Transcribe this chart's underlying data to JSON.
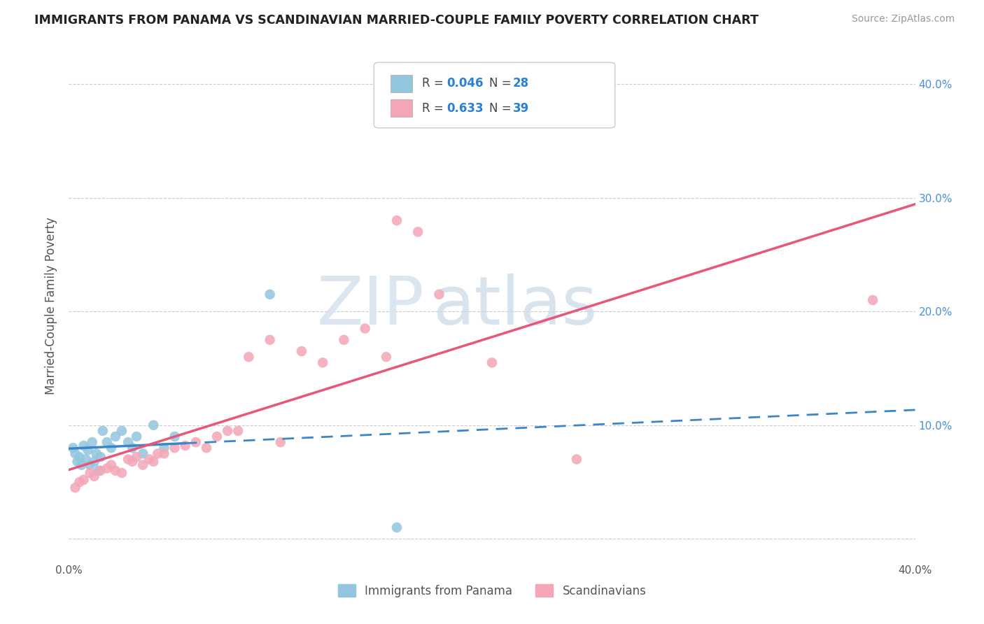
{
  "title": "IMMIGRANTS FROM PANAMA VS SCANDINAVIAN MARRIED-COUPLE FAMILY POVERTY CORRELATION CHART",
  "source": "Source: ZipAtlas.com",
  "ylabel": "Married-Couple Family Poverty",
  "xlim": [
    0.0,
    0.4
  ],
  "ylim": [
    -0.02,
    0.43
  ],
  "yticks": [
    0.0,
    0.1,
    0.2,
    0.3,
    0.4
  ],
  "left_ytick_labels": [
    "",
    "",
    "",
    "",
    ""
  ],
  "right_ytick_labels": [
    "",
    "10.0%",
    "20.0%",
    "30.0%",
    "40.0%"
  ],
  "legend_r1": "0.046",
  "legend_n1": "28",
  "legend_r2": "0.633",
  "legend_n2": "39",
  "legend_label1": "Immigrants from Panama",
  "legend_label2": "Scandinavians",
  "watermark_zip": "ZIP",
  "watermark_atlas": "atlas",
  "blue_color": "#92c5de",
  "pink_color": "#f4a6b8",
  "blue_line_color": "#3a86c8",
  "pink_line_color": "#e8567a",
  "background_color": "#ffffff",
  "grid_color": "#cccccc",
  "panama_x": [
    0.002,
    0.003,
    0.004,
    0.005,
    0.006,
    0.007,
    0.008,
    0.009,
    0.01,
    0.011,
    0.012,
    0.013,
    0.014,
    0.015,
    0.016,
    0.018,
    0.02,
    0.022,
    0.025,
    0.028,
    0.03,
    0.032,
    0.035,
    0.04,
    0.045,
    0.05,
    0.095,
    0.155
  ],
  "panama_y": [
    0.08,
    0.075,
    0.068,
    0.072,
    0.065,
    0.082,
    0.07,
    0.078,
    0.065,
    0.085,
    0.068,
    0.075,
    0.06,
    0.072,
    0.095,
    0.085,
    0.08,
    0.09,
    0.095,
    0.085,
    0.08,
    0.09,
    0.075,
    0.1,
    0.08,
    0.09,
    0.215,
    0.01
  ],
  "scand_x": [
    0.003,
    0.005,
    0.007,
    0.01,
    0.012,
    0.015,
    0.018,
    0.02,
    0.022,
    0.025,
    0.028,
    0.03,
    0.032,
    0.035,
    0.038,
    0.04,
    0.042,
    0.045,
    0.05,
    0.055,
    0.06,
    0.065,
    0.07,
    0.075,
    0.08,
    0.085,
    0.095,
    0.1,
    0.11,
    0.12,
    0.13,
    0.14,
    0.15,
    0.155,
    0.165,
    0.175,
    0.2,
    0.24,
    0.38
  ],
  "scand_y": [
    0.045,
    0.05,
    0.052,
    0.058,
    0.055,
    0.06,
    0.062,
    0.065,
    0.06,
    0.058,
    0.07,
    0.068,
    0.072,
    0.065,
    0.07,
    0.068,
    0.075,
    0.075,
    0.08,
    0.082,
    0.085,
    0.08,
    0.09,
    0.095,
    0.095,
    0.16,
    0.175,
    0.085,
    0.165,
    0.155,
    0.175,
    0.185,
    0.16,
    0.28,
    0.27,
    0.215,
    0.155,
    0.07,
    0.21
  ]
}
